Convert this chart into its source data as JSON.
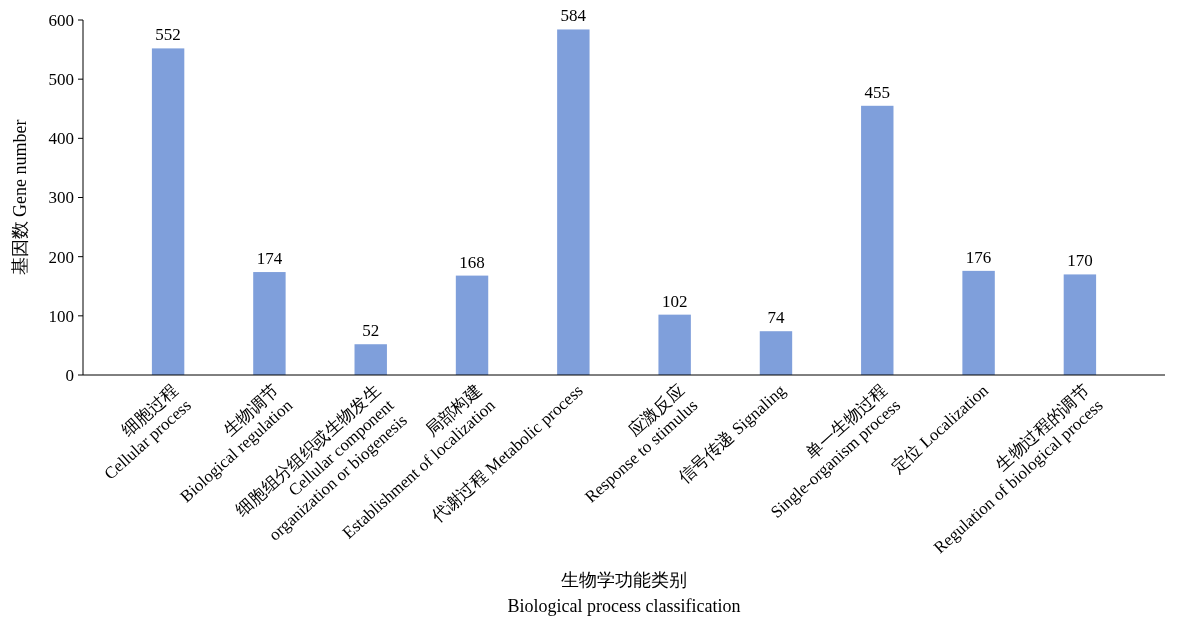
{
  "chart_data": {
    "type": "bar",
    "xlabel": "生物学功能类别\nBiological process classification",
    "ylabel": "基因数 Gene number",
    "categories": [
      "细胞过程\nCellular process",
      "生物调节\nBiological regulation",
      "细胞组分组织或生物发生\nCellular component\norganization or biogenesis",
      "局部构建\nEstablishment of localization",
      "代谢过程 Metabolic process",
      "应激反应\nResponse to stimulus",
      "信号传递 Signaling",
      "单一生物过程\nSingle-organism process",
      "定位 Localization",
      "生物过程的调节\nRegulation of biological process"
    ],
    "values": [
      552,
      174,
      52,
      168,
      584,
      102,
      74,
      455,
      176,
      170
    ],
    "color": "#7f9fdb",
    "ylim": [
      0,
      600
    ],
    "yticks": [
      0,
      100,
      200,
      300,
      400,
      500,
      600
    ],
    "data_labels": true,
    "grid": false
  }
}
